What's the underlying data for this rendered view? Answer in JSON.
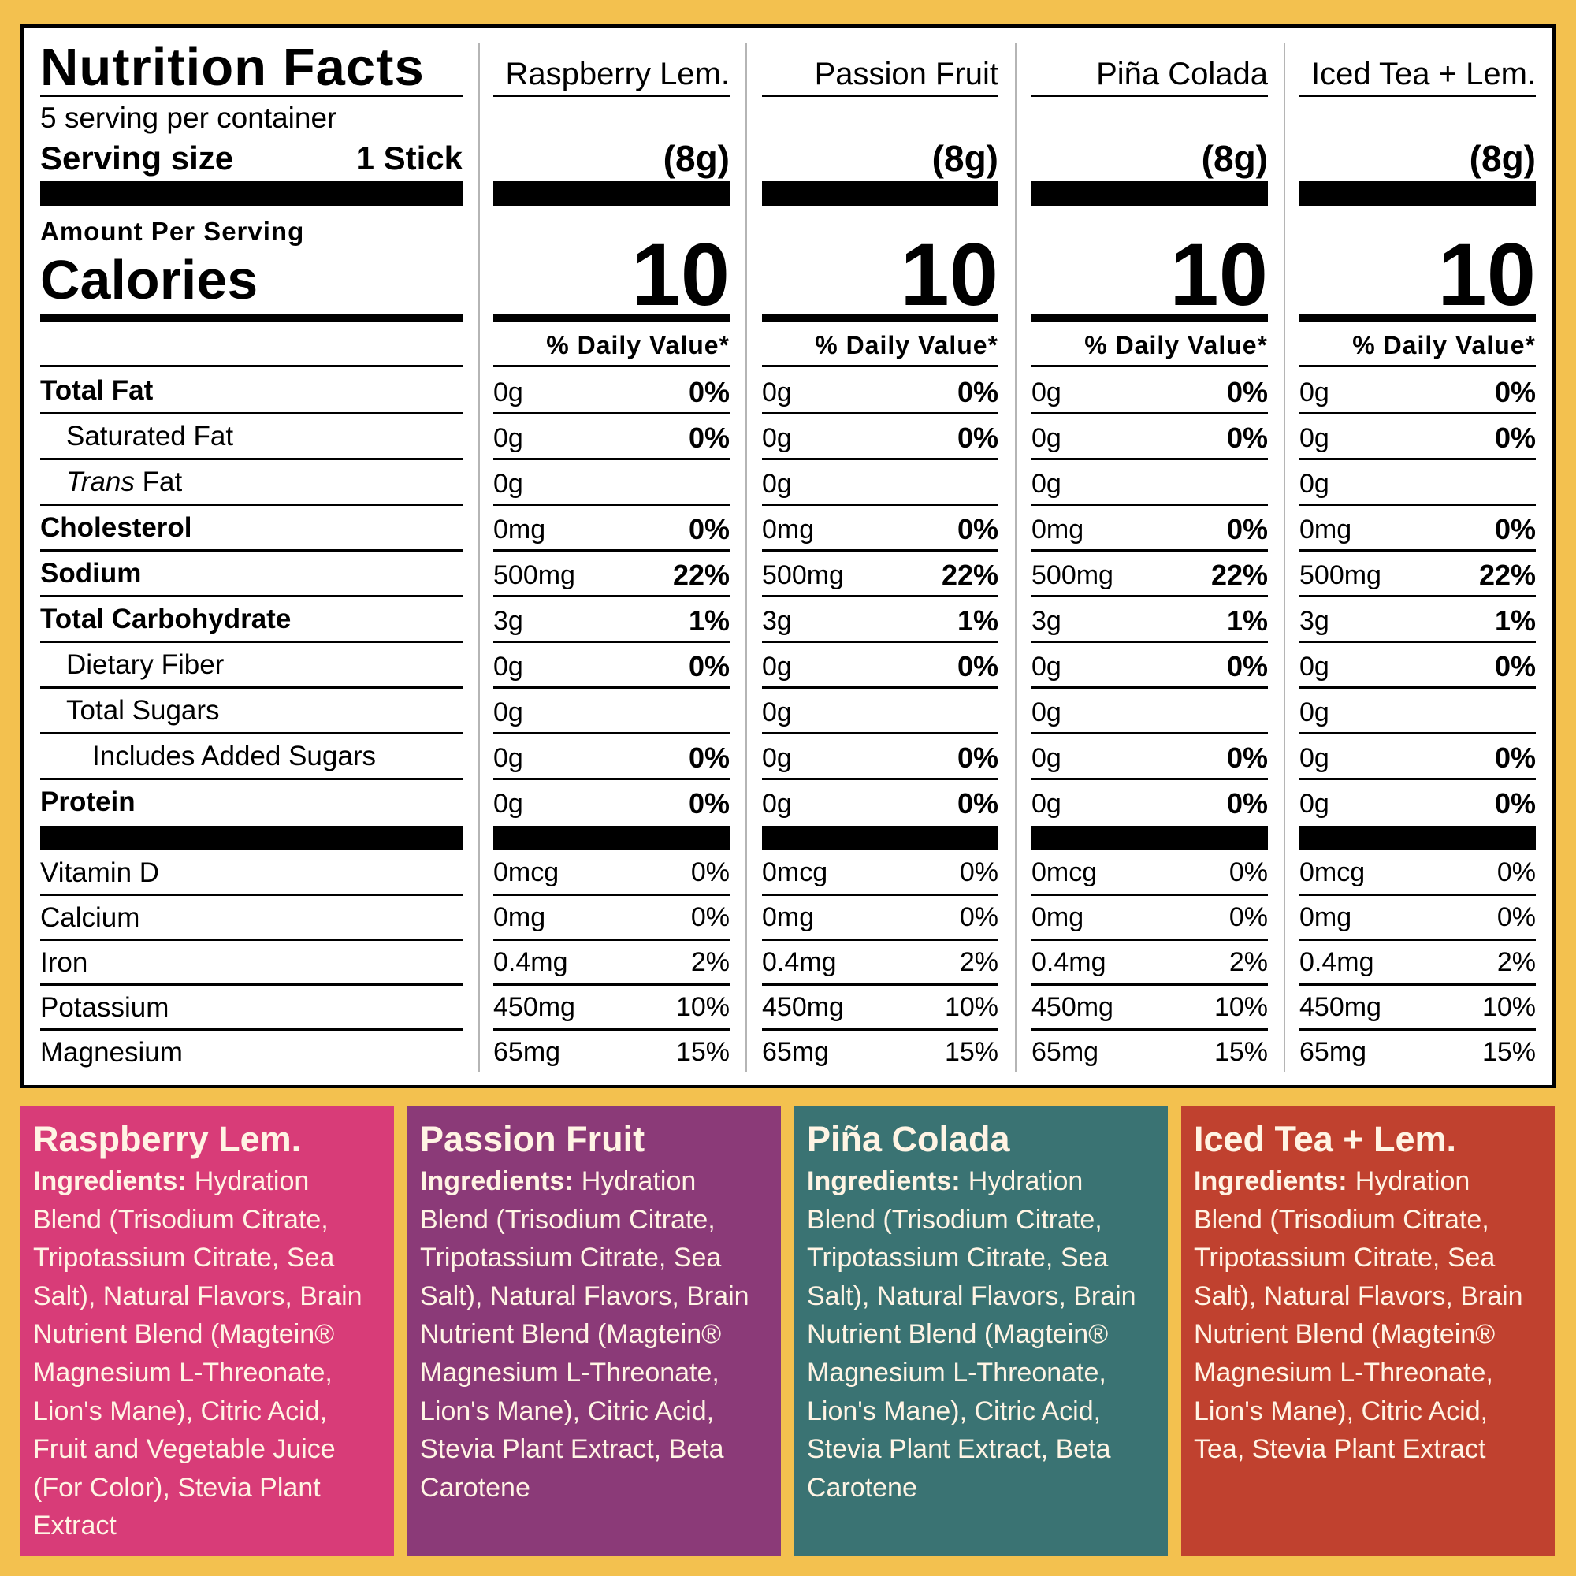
{
  "header": {
    "title": "Nutrition Facts",
    "servings": "5 serving per container",
    "serving_size_label": "Serving size",
    "serving_size": "1 Stick",
    "amount_per_serving": "Amount Per Serving",
    "calories_label": "Calories"
  },
  "nutrients": [
    {
      "label": "Total Fat"
    },
    {
      "label": "Saturated Fat"
    },
    {
      "label_italic": "Trans",
      "label": "Fat"
    },
    {
      "label": "Cholesterol"
    },
    {
      "label": "Sodium"
    },
    {
      "label": "Total Carbohydrate"
    },
    {
      "label": "Dietary Fiber"
    },
    {
      "label": "Total Sugars"
    },
    {
      "label": "Includes Added Sugars"
    },
    {
      "label": "Protein"
    }
  ],
  "vitamins": [
    {
      "label": "Vitamin D"
    },
    {
      "label": "Calcium"
    },
    {
      "label": "Iron"
    },
    {
      "label": "Potassium"
    },
    {
      "label": "Magnesium"
    }
  ],
  "products": [
    {
      "name": "Raspberry Lem.",
      "serving": "(8g)",
      "calories": 10,
      "daily_value_header": "% Daily Value*",
      "nutrients": [
        [
          "0g",
          "0%"
        ],
        [
          "0g",
          "0%"
        ],
        [
          "0g",
          null
        ],
        [
          "0mg",
          "0%"
        ],
        [
          "500mg",
          "22%"
        ],
        [
          "3g",
          "1%"
        ],
        [
          "0g",
          "0%"
        ],
        [
          "0g",
          null
        ],
        [
          "0g",
          "0%"
        ],
        [
          "0g",
          "0%"
        ]
      ],
      "vitamins": [
        [
          "0mcg",
          "0%"
        ],
        [
          "0mg",
          "0%"
        ],
        [
          "0.4mg",
          "2%"
        ],
        [
          "450mg",
          "10%"
        ],
        [
          "65mg",
          "15%"
        ]
      ],
      "ingredients_label": "Ingredients:",
      "ingredients": "Hydration Blend (Trisodium Citrate, Tripotassium Citrate, Sea Salt), Natural Flavors, Brain Nutrient Blend (Magtein® Magnesium L-Threonate, Lion's Mane), Citric Acid, Fruit and Vegetable Juice (For Color), Stevia Plant Extract",
      "color": "#d83c78"
    },
    {
      "name": "Passion Fruit",
      "serving": "(8g)",
      "calories": 10,
      "daily_value_header": "% Daily Value*",
      "nutrients": [
        [
          "0g",
          "0%"
        ],
        [
          "0g",
          "0%"
        ],
        [
          "0g",
          null
        ],
        [
          "0mg",
          "0%"
        ],
        [
          "500mg",
          "22%"
        ],
        [
          "3g",
          "1%"
        ],
        [
          "0g",
          "0%"
        ],
        [
          "0g",
          null
        ],
        [
          "0g",
          "0%"
        ],
        [
          "0g",
          "0%"
        ]
      ],
      "vitamins": [
        [
          "0mcg",
          "0%"
        ],
        [
          "0mg",
          "0%"
        ],
        [
          "0.4mg",
          "2%"
        ],
        [
          "450mg",
          "10%"
        ],
        [
          "65mg",
          "15%"
        ]
      ],
      "ingredients_label": "Ingredients:",
      "ingredients": "Hydration Blend (Trisodium Citrate, Tripotassium Citrate, Sea Salt), Natural Flavors, Brain Nutrient Blend (Magtein® Magnesium L-Threonate, Lion's Mane), Citric Acid, Stevia Plant Extract, Beta Carotene",
      "color": "#8b3a78"
    },
    {
      "name": "Piña Colada",
      "serving": "(8g)",
      "calories": 10,
      "daily_value_header": "% Daily Value*",
      "nutrients": [
        [
          "0g",
          "0%"
        ],
        [
          "0g",
          "0%"
        ],
        [
          "0g",
          null
        ],
        [
          "0mg",
          "0%"
        ],
        [
          "500mg",
          "22%"
        ],
        [
          "3g",
          "1%"
        ],
        [
          "0g",
          "0%"
        ],
        [
          "0g",
          null
        ],
        [
          "0g",
          "0%"
        ],
        [
          "0g",
          "0%"
        ]
      ],
      "vitamins": [
        [
          "0mcg",
          "0%"
        ],
        [
          "0mg",
          "0%"
        ],
        [
          "0.4mg",
          "2%"
        ],
        [
          "450mg",
          "10%"
        ],
        [
          "65mg",
          "15%"
        ]
      ],
      "ingredients_label": "Ingredients:",
      "ingredients": "Hydration Blend (Trisodium Citrate, Tripotassium Citrate, Sea Salt), Natural Flavors, Brain Nutrient Blend (Magtein® Magnesium L-Threonate, Lion's Mane), Citric Acid, Stevia Plant Extract, Beta Carotene",
      "color": "#3a7373"
    },
    {
      "name": "Iced Tea + Lem.",
      "serving": "(8g)",
      "calories": 10,
      "daily_value_header": "% Daily Value*",
      "nutrients": [
        [
          "0g",
          "0%"
        ],
        [
          "0g",
          "0%"
        ],
        [
          "0g",
          null
        ],
        [
          "0mg",
          "0%"
        ],
        [
          "500mg",
          "22%"
        ],
        [
          "3g",
          "1%"
        ],
        [
          "0g",
          "0%"
        ],
        [
          "0g",
          null
        ],
        [
          "0g",
          "0%"
        ],
        [
          "0g",
          "0%"
        ]
      ],
      "vitamins": [
        [
          "0mcg",
          "0%"
        ],
        [
          "0mg",
          "0%"
        ],
        [
          "0.4mg",
          "2%"
        ],
        [
          "450mg",
          "10%"
        ],
        [
          "65mg",
          "15%"
        ]
      ],
      "ingredients_label": "Ingredients:",
      "ingredients": "Hydration Blend (Trisodium Citrate, Tripotassium Citrate, Sea Salt), Natural Flavors, Brain Nutrient Blend (Magtein® Magnesium L-Threonate, Lion's Mane), Citric Acid, Tea, Stevia Plant Extract",
      "color": "#c0412f"
    }
  ]
}
